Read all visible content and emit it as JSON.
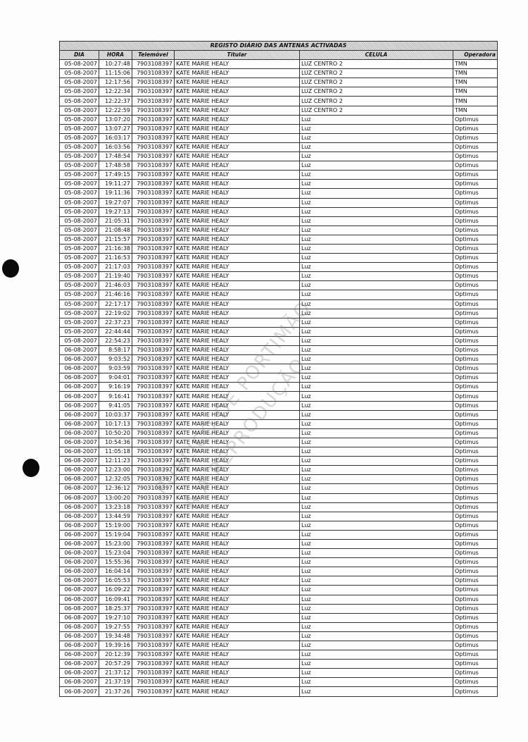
{
  "title": "REGISTO DIÁRIO DAS ANTENAS ACTIVADAS",
  "columns": [
    "DIA",
    "HORA",
    "Telemóvel",
    "Titular",
    "CELULA",
    "Operadora"
  ],
  "watermark": [
    "PÚBLICO DE PORTIMÃO",
    "A A REPRODUÇÃO"
  ],
  "rows": [
    [
      "05-08-2007",
      "10:27:48",
      "7903108397",
      "KATE MARIE HEALY",
      "LUZ CENTRO 2",
      "TMN"
    ],
    [
      "05-08-2007",
      "11:15:06",
      "7903108397",
      "KATE MARIE HEALY",
      "LUZ CENTRO 2",
      "TMN"
    ],
    [
      "05-08-2007",
      "12:17:56",
      "7903108397",
      "KATE MARIE HEALY",
      "LUZ CENTRO 2",
      "TMN"
    ],
    [
      "05-08-2007",
      "12:22:34",
      "7903108397",
      "KATE MARIE HEALY",
      "LUZ CENTRO 2",
      "TMN"
    ],
    [
      "05-08-2007",
      "12:22:37",
      "7903108397",
      "KATE MARIE HEALY",
      "LUZ CENTRO 2",
      "TMN"
    ],
    [
      "05-08-2007",
      "12:22:59",
      "7903108397",
      "KATE MARIE HEALY",
      "LUZ CENTRO 2",
      "TMN"
    ],
    [
      "05-08-2007",
      "13:07:20",
      "7903108397",
      "KATE MARIE HEALY",
      "Luz",
      "Optimus"
    ],
    [
      "05-08-2007",
      "13:07:27",
      "7903108397",
      "KATE MARIE HEALY",
      "Luz",
      "Optimus"
    ],
    [
      "05-08-2007",
      "16:03:17",
      "7903108397",
      "KATE MARIE HEALY",
      "Luz",
      "Optimus"
    ],
    [
      "05-08-2007",
      "16:03:56",
      "7903108397",
      "KATE MARIE HEALY",
      "Luz",
      "Optimus"
    ],
    [
      "05-08-2007",
      "17:48:54",
      "7903108397",
      "KATE MARIE HEALY",
      "Luz",
      "Optimus"
    ],
    [
      "05-08-2007",
      "17:48:58",
      "7903108397",
      "KATE MARIE HEALY",
      "Luz",
      "Optimus"
    ],
    [
      "05-08-2007",
      "17:49:15",
      "7903108397",
      "KATE MARIE HEALY",
      "Luz",
      "Optimus"
    ],
    [
      "05-08-2007",
      "19:11:27",
      "7903108397",
      "KATE MARIE HEALY",
      "Luz",
      "Optimus"
    ],
    [
      "05-08-2007",
      "19:11:36",
      "7903108397",
      "KATE MARIE HEALY",
      "Luz",
      "Optimus"
    ],
    [
      "05-08-2007",
      "19:27:07",
      "7903108397",
      "KATE MARIE HEALY",
      "Luz",
      "Optimus"
    ],
    [
      "05-08-2007",
      "19:27:13",
      "7903108397",
      "KATE MARIE HEALY",
      "Luz",
      "Optimus"
    ],
    [
      "05-08-2007",
      "21:05:31",
      "7903108397",
      "KATE MARIE HEALY",
      "Luz",
      "Optimus"
    ],
    [
      "05-08-2007",
      "21:08:48",
      "7903108397",
      "KATE MARIE HEALY",
      "Luz",
      "Optimus"
    ],
    [
      "05-08-2007",
      "21:15:57",
      "7903108397",
      "KATE MARIE HEALY",
      "Luz",
      "Optimus"
    ],
    [
      "05-08-2007",
      "21:16:38",
      "7903108397",
      "KATE MARIE HEALY",
      "Luz",
      "Optimus"
    ],
    [
      "05-08-2007",
      "21:16:53",
      "7903108397",
      "KATE MARIE HEALY",
      "Luz",
      "Optimus"
    ],
    [
      "05-08-2007",
      "21:17:03",
      "7903108397",
      "KATE MARIE HEALY",
      "Luz",
      "Optimus"
    ],
    [
      "05-08-2007",
      "21:19:40",
      "7903108397",
      "KATE MARIE HEALY",
      "Luz",
      "Optimus"
    ],
    [
      "05-08-2007",
      "21:46:03",
      "7903108397",
      "KATE MARIE HEALY",
      "Luz",
      "Optimus"
    ],
    [
      "05-08-2007",
      "21:46:16",
      "7903108397",
      "KATE MARIE HEALY",
      "Luz",
      "Optimus"
    ],
    [
      "05-08-2007",
      "22:17:17",
      "7903108397",
      "KATE MARIE HEALY",
      "Luz",
      "Optimus"
    ],
    [
      "05-08-2007",
      "22:19:02",
      "7903108397",
      "KATE MARIE HEALY",
      "Luz",
      "Optimus"
    ],
    [
      "05-08-2007",
      "22:37:23",
      "7903108397",
      "KATE MARIE HEALY",
      "Luz",
      "Optimus"
    ],
    [
      "05-08-2007",
      "22:44:44",
      "7903108397",
      "KATE MARIE HEALY",
      "Luz",
      "Optimus"
    ],
    [
      "05-08-2007",
      "22:54:23",
      "7903108397",
      "KATE MARIE HEALY",
      "Luz",
      "Optimus"
    ],
    [
      "06-08-2007",
      "8:58:17",
      "7903108397",
      "KATE MARIE HEALY",
      "Luz",
      "Optimus"
    ],
    [
      "06-08-2007",
      "9:03:52",
      "7903108397",
      "KATE MARIE HEALY",
      "Luz",
      "Optimus"
    ],
    [
      "06-08-2007",
      "9:03:59",
      "7903108397",
      "KATE MARIE HEALY",
      "Luz",
      "Optimus"
    ],
    [
      "06-08-2007",
      "9:04:01",
      "7903108397",
      "KATE MARIE HEALY",
      "Luz",
      "Optimus"
    ],
    [
      "06-08-2007",
      "9:16:19",
      "7903108397",
      "KATE MARIE HEALY",
      "Luz",
      "Optimus"
    ],
    [
      "06-08-2007",
      "9:16:41",
      "7903108397",
      "KATE MARIE HEALY",
      "Luz",
      "Optimus"
    ],
    [
      "06-08-2007",
      "9:41:05",
      "7903108397",
      "KATE MARIE HEALY",
      "Luz",
      "Optimus"
    ],
    [
      "06-08-2007",
      "10:03:37",
      "7903108397",
      "KATE MARIE HEALY",
      "Luz",
      "Optimus"
    ],
    [
      "06-08-2007",
      "10:17:13",
      "7903108397",
      "KATE MARIE HEALY",
      "Luz",
      "Optimus"
    ],
    [
      "06-08-2007",
      "10:50:20",
      "7903108397",
      "KATE MARIE HEALY",
      "Luz",
      "Optimus"
    ],
    [
      "06-08-2007",
      "10:54:36",
      "7903108397",
      "KATE MARIE HEALY",
      "Luz",
      "Optimus"
    ],
    [
      "06-08-2007",
      "11:05:18",
      "7903108397",
      "KATE MARIE HEALY",
      "Luz",
      "Optimus"
    ],
    [
      "06-08-2007",
      "12:11:23",
      "7903108397",
      "KATE MARIE HEALY",
      "Luz",
      "Optimus"
    ],
    [
      "06-08-2007",
      "12:23:00",
      "7903108397",
      "KATE MARIE HEALY",
      "Luz",
      "Optimus"
    ],
    [
      "06-08-2007",
      "12:32:05",
      "7903108397",
      "KATE MARIE HEALY",
      "Luz",
      "Optimus"
    ],
    [
      "06-08-2007",
      "12:36:12",
      "7903108397",
      "KATE MARIE HEALY",
      "Luz",
      "Optimus"
    ],
    [
      "06-08-2007",
      "13:00:20",
      "7903108397",
      "KATE MARIE HEALY",
      "Luz",
      "Optimus"
    ],
    [
      "06-08-2007",
      "13:23:18",
      "7903108397",
      "KATE MARIE HEALY",
      "Luz",
      "Optimus"
    ],
    [
      "06-08-2007",
      "13:44:59",
      "7903108397",
      "KATE MARIE HEALY",
      "Luz",
      "Optimus"
    ],
    [
      "06-08-2007",
      "15:19:00",
      "7903108397",
      "KATE MARIE HEALY",
      "Luz",
      "Optimus"
    ],
    [
      "06-08-2007",
      "15:19:04",
      "7903108397",
      "KATE MARIE HEALY",
      "Luz",
      "Optimus"
    ],
    [
      "06-08-2007",
      "15:23:00",
      "7903108397",
      "KATE MARIE HEALY",
      "Luz",
      "Optimus"
    ],
    [
      "06-08-2007",
      "15:23:04",
      "7903108397",
      "KATE MARIE HEALY",
      "Luz",
      "Optimus"
    ],
    [
      "06-08-2007",
      "15:55:36",
      "7903108397",
      "KATE MARIE HEALY",
      "Luz",
      "Optimus"
    ],
    [
      "06-08-2007",
      "16:04:14",
      "7903108397",
      "KATE MARIE HEALY",
      "Luz",
      "Optimus"
    ],
    [
      "06-08-2007",
      "16:05:53",
      "7903108397",
      "KATE MARIE HEALY",
      "Luz",
      "Optimus"
    ],
    [
      "06-08-2007",
      "16:09:22",
      "7903108397",
      "KATE MARIE HEALY",
      "Luz",
      "Optimus"
    ],
    [
      "06-08-2007",
      "16:09:41",
      "7903108397",
      "KATE MARIE HEALY",
      "Luz",
      "Optimus"
    ],
    [
      "06-08-2007",
      "18:25:37",
      "7903108397",
      "KATE MARIE HEALY",
      "Luz",
      "Optimus"
    ],
    [
      "06-08-2007",
      "19:27:10",
      "7903108397",
      "KATE MARIE HEALY",
      "Luz",
      "Optimus"
    ],
    [
      "06-08-2007",
      "19:27:55",
      "7903108397",
      "KATE MARIE HEALY",
      "Luz",
      "Optimus"
    ],
    [
      "06-08-2007",
      "19:34:48",
      "7903108397",
      "KATE MARIE HEALY",
      "Luz",
      "Optimus"
    ],
    [
      "06-08-2007",
      "19:39:16",
      "7903108397",
      "KATE MARIE HEALY",
      "Luz",
      "Optimus"
    ],
    [
      "06-08-2007",
      "20:12:39",
      "7903108397",
      "KATE MARIE HEALY",
      "Luz",
      "Optimus"
    ],
    [
      "06-08-2007",
      "20:57:29",
      "7903108397",
      "KATE MARIE HEALY",
      "Luz",
      "Optimus"
    ],
    [
      "06-08-2007",
      "21:37:12",
      "7903108397",
      "KATE MARIE HEALY",
      "Luz",
      "Optimus"
    ],
    [
      "06-08-2007",
      "21:37:19",
      "7903108397",
      "KATE MARIE HEALY",
      "Luz",
      "Optimus"
    ],
    [
      "06-08-2007",
      "21:37:26",
      "7903108397",
      "KATE MARIE HEALY",
      "Luz",
      "Optimus"
    ]
  ]
}
